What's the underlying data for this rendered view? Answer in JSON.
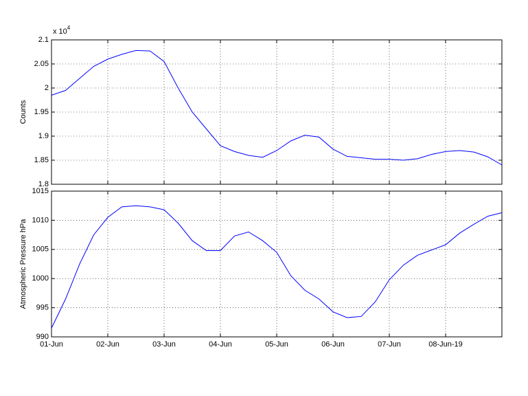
{
  "chart_data": [
    {
      "type": "line",
      "ylabel": "Counts",
      "multiplier": "x 10",
      "multiplier_exponent": "4",
      "x": [
        0,
        0.25,
        0.5,
        0.75,
        1,
        1.25,
        1.5,
        1.75,
        2,
        2.25,
        2.5,
        2.75,
        3,
        3.25,
        3.5,
        3.75,
        4,
        4.25,
        4.5,
        4.75,
        5,
        5.25,
        5.5,
        5.75,
        6,
        6.25,
        6.5,
        6.75,
        7,
        7.25,
        7.5,
        7.75,
        8
      ],
      "series": [
        {
          "color": "#0000ff",
          "values": [
            1.985,
            1.995,
            2.02,
            2.045,
            2.06,
            2.07,
            2.078,
            2.077,
            2.055,
            2.0,
            1.95,
            1.915,
            1.88,
            1.868,
            1.86,
            1.856,
            1.87,
            1.89,
            1.902,
            1.898,
            1.873,
            1.858,
            1.855,
            1.852,
            1.852,
            1.85,
            1.853,
            1.862,
            1.868,
            1.87,
            1.867,
            1.857,
            1.84
          ]
        }
      ],
      "xlim": [
        0,
        8
      ],
      "xticks": [
        0,
        1,
        2,
        3,
        4,
        5,
        6,
        7
      ],
      "ylim": [
        1.8,
        2.1
      ],
      "yticks": [
        1.8,
        1.85,
        1.9,
        1.95,
        2,
        2.05,
        2.1
      ],
      "grid": true
    },
    {
      "type": "line",
      "ylabel": "Atmospheric Pressure hPa",
      "x": [
        0,
        0.25,
        0.5,
        0.75,
        1,
        1.25,
        1.5,
        1.75,
        2,
        2.25,
        2.5,
        2.75,
        3,
        3.25,
        3.5,
        3.75,
        4,
        4.25,
        4.5,
        4.75,
        5,
        5.25,
        5.5,
        5.75,
        6,
        6.25,
        6.5,
        6.75,
        7,
        7.25,
        7.5,
        7.75,
        8
      ],
      "series": [
        {
          "color": "#0000ff",
          "values": [
            991.5,
            996.5,
            1002.5,
            1007.5,
            1010.5,
            1012.3,
            1012.5,
            1012.3,
            1011.8,
            1009.5,
            1006.5,
            1004.8,
            1004.8,
            1007.3,
            1008,
            1006.5,
            1004.5,
            1000.5,
            998,
            996.5,
            994.3,
            993.3,
            993.5,
            996,
            999.8,
            1002.3,
            1004,
            1004.9,
            1005.8,
            1007.8,
            1009.3,
            1010.7,
            1011.3
          ]
        }
      ],
      "xlim": [
        0,
        8
      ],
      "xticks": [
        {
          "value": 0,
          "label": "01-Jun"
        },
        {
          "value": 1,
          "label": "02-Jun"
        },
        {
          "value": 2,
          "label": "03-Jun"
        },
        {
          "value": 3,
          "label": "04-Jun"
        },
        {
          "value": 4,
          "label": "05-Jun"
        },
        {
          "value": 5,
          "label": "06-Jun"
        },
        {
          "value": 6,
          "label": "07-Jun"
        },
        {
          "value": 7,
          "label": "08-Jun-19"
        }
      ],
      "ylim": [
        990,
        1015
      ],
      "yticks": [
        990,
        995,
        1000,
        1005,
        1010,
        1015
      ],
      "grid": true
    }
  ]
}
